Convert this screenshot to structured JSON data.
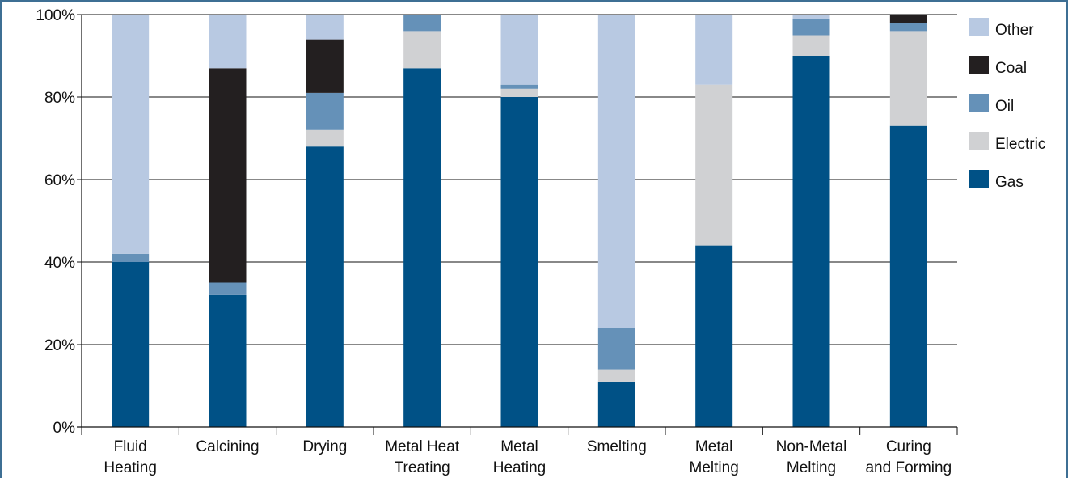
{
  "chart_data": {
    "type": "bar",
    "stacked": true,
    "categories": [
      [
        "Fluid",
        "Heating"
      ],
      [
        "Calcining"
      ],
      [
        "Drying"
      ],
      [
        "Metal Heat",
        "Treating"
      ],
      [
        "Metal",
        "Heating"
      ],
      [
        "Smelting"
      ],
      [
        "Metal",
        "Melting"
      ],
      [
        "Non-Metal",
        "Melting"
      ],
      [
        "Curing",
        "and Forming"
      ]
    ],
    "series": [
      {
        "name": "Gas",
        "color": "#005186",
        "values": [
          40,
          32,
          68,
          87,
          80,
          11,
          44,
          90,
          73
        ]
      },
      {
        "name": "Electric",
        "color": "#d0d1d3",
        "values": [
          0,
          0,
          4,
          9,
          2,
          3,
          39,
          5,
          23
        ]
      },
      {
        "name": "Oil",
        "color": "#6591b8",
        "values": [
          2,
          3,
          9,
          4,
          1,
          10,
          0,
          4,
          2
        ]
      },
      {
        "name": "Coal",
        "color": "#231f20",
        "values": [
          0,
          52,
          13,
          0,
          0,
          0,
          0,
          0,
          2
        ]
      },
      {
        "name": "Other",
        "color": "#b8c9e2",
        "values": [
          58,
          13,
          6,
          0,
          17,
          76,
          17,
          1,
          0
        ]
      }
    ],
    "legend_order": [
      "Other",
      "Coal",
      "Oil",
      "Electric",
      "Gas"
    ],
    "ylim": [
      0,
      100
    ],
    "yticks": [
      "0%",
      "20%",
      "40%",
      "60%",
      "80%",
      "100%"
    ],
    "grid": true,
    "legend": "right"
  }
}
